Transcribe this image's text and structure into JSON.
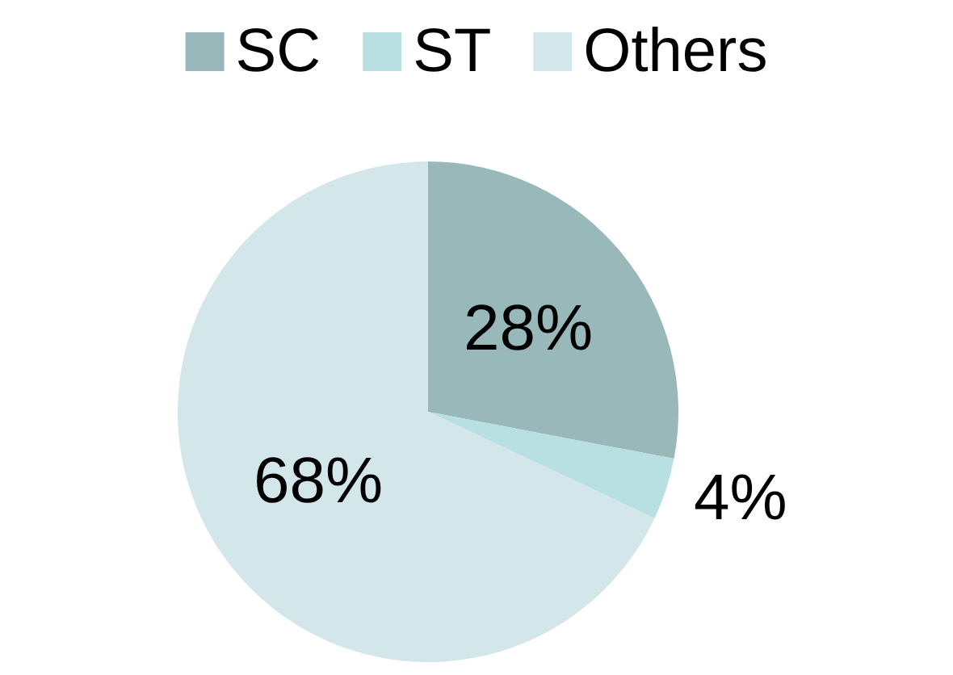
{
  "chart_data": {
    "type": "pie",
    "categories": [
      "SC",
      "ST",
      "Others"
    ],
    "values": [
      28,
      4,
      68
    ],
    "colors": [
      "#98b8ba",
      "#b8dfe1",
      "#d3e6e9"
    ],
    "value_labels": [
      "28%",
      "4%",
      "68%"
    ],
    "legend": "top"
  }
}
